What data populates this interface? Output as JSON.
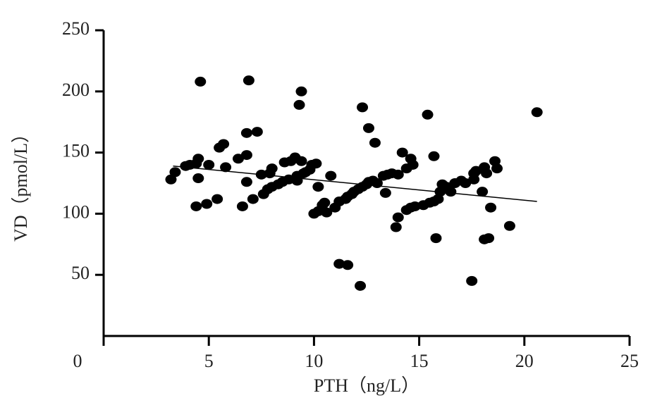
{
  "chart_data": {
    "type": "scatter",
    "xlabel": "PTH（ng/L）",
    "ylabel": "VD（pmol/L）",
    "xlim": [
      0,
      25
    ],
    "ylim": [
      0,
      250
    ],
    "xticks": [
      0,
      5,
      10,
      15,
      20,
      25
    ],
    "yticks": [
      50,
      100,
      150,
      200,
      250
    ],
    "series": [
      {
        "color": "#000000",
        "x": [
          3.2,
          3.4,
          3.9,
          4.1,
          4.4,
          4.5,
          4.5,
          4.4,
          4.6,
          4.9,
          5.0,
          5.4,
          5.5,
          5.7,
          5.8,
          6.4,
          6.6,
          6.8,
          6.8,
          6.8,
          6.9,
          7.1,
          7.3,
          7.5,
          7.6,
          7.8,
          7.9,
          8.0,
          8.0,
          8.3,
          8.5,
          8.6,
          8.8,
          8.9,
          9.1,
          9.2,
          9.2,
          9.3,
          9.4,
          9.5,
          9.6,
          9.8,
          9.9,
          10.1,
          9.4,
          10.0,
          10.2,
          10.4,
          10.5,
          10.6,
          10.8,
          10.2,
          11.0,
          11.2,
          11.2,
          11.5,
          11.6,
          11.6,
          11.8,
          11.9,
          12.1,
          12.2,
          12.3,
          12.3,
          12.5,
          12.6,
          12.6,
          12.8,
          12.9,
          13.0,
          13.3,
          13.4,
          13.5,
          13.7,
          13.9,
          14.0,
          14.0,
          14.2,
          14.4,
          14.4,
          14.6,
          14.6,
          14.7,
          14.8,
          15.2,
          15.4,
          15.5,
          15.7,
          15.7,
          15.8,
          15.9,
          16.0,
          16.1,
          16.3,
          16.5,
          16.7,
          17.0,
          17.2,
          17.5,
          17.6,
          17.6,
          17.7,
          18.0,
          18.1,
          18.1,
          18.3,
          18.2,
          18.4,
          18.6,
          18.7,
          19.3,
          20.6
        ],
        "y": [
          128,
          134,
          139,
          140,
          141,
          145,
          129,
          106,
          208,
          108,
          140,
          112,
          154,
          157,
          138,
          145,
          106,
          126,
          148,
          166,
          209,
          112,
          167,
          132,
          116,
          120,
          133,
          137,
          122,
          124,
          126,
          142,
          128,
          143,
          146,
          131,
          127,
          189,
          200,
          133,
          134,
          136,
          140,
          141,
          143,
          100,
          102,
          107,
          109,
          101,
          131,
          122,
          105,
          59,
          110,
          112,
          58,
          114,
          116,
          118,
          120,
          41,
          122,
          187,
          124,
          170,
          126,
          127,
          158,
          125,
          131,
          117,
          132,
          133,
          89,
          97,
          132,
          150,
          103,
          137,
          105,
          145,
          140,
          106,
          107,
          181,
          109,
          110,
          147,
          80,
          112,
          118,
          124,
          122,
          118,
          125,
          127,
          125,
          45,
          128,
          133,
          135,
          118,
          138,
          79,
          80,
          133,
          105,
          143,
          137,
          90,
          183
        ]
      }
    ],
    "trendline": {
      "x": [
        3.3,
        20.6
      ],
      "y": [
        139,
        110
      ]
    }
  }
}
